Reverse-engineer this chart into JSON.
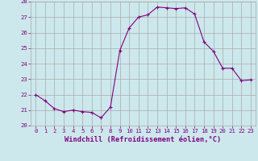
{
  "x": [
    0,
    1,
    2,
    3,
    4,
    5,
    6,
    7,
    8,
    9,
    10,
    11,
    12,
    13,
    14,
    15,
    16,
    17,
    18,
    19,
    20,
    21,
    22,
    23
  ],
  "y": [
    22.0,
    21.6,
    21.1,
    20.9,
    21.0,
    20.9,
    20.85,
    20.5,
    21.2,
    24.85,
    26.3,
    27.0,
    27.15,
    27.65,
    27.6,
    27.55,
    27.6,
    27.2,
    25.4,
    24.8,
    23.7,
    23.7,
    22.9,
    22.95
  ],
  "line_color": "#800080",
  "marker": "+",
  "bg_color": "#cce8ec",
  "grid_color": "#aaaaaa",
  "xlabel": "Windchill (Refroidissement éolien,°C)",
  "xlabel_color": "#800080",
  "tick_color": "#800080",
  "ylim": [
    20,
    28
  ],
  "xlim": [
    -0.5,
    23.5
  ],
  "yticks": [
    20,
    21,
    22,
    23,
    24,
    25,
    26,
    27,
    28
  ],
  "xticks": [
    0,
    1,
    2,
    3,
    4,
    5,
    6,
    7,
    8,
    9,
    10,
    11,
    12,
    13,
    14,
    15,
    16,
    17,
    18,
    19,
    20,
    21,
    22,
    23
  ],
  "font_family": "monospace",
  "tick_fontsize": 5.2,
  "xlabel_fontsize": 6.2
}
